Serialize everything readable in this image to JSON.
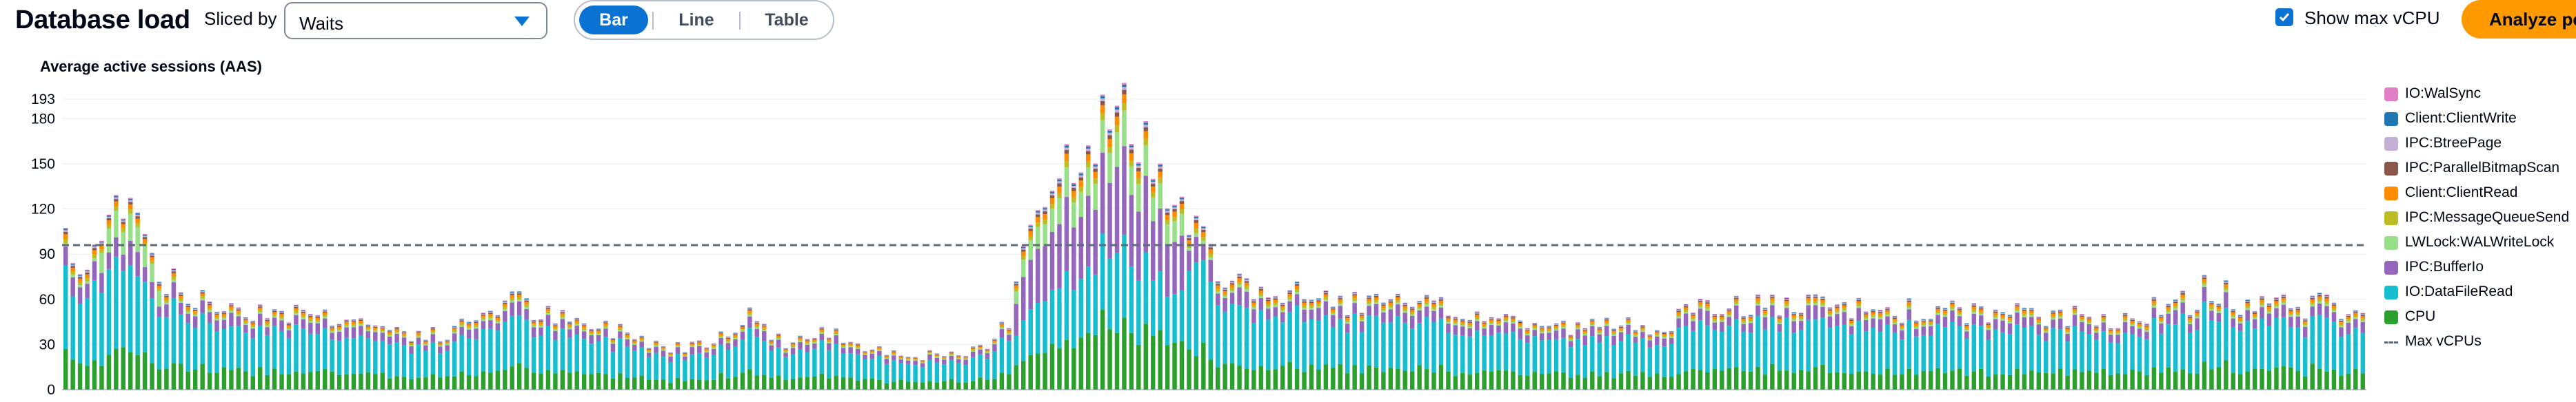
{
  "header": {
    "title": "Database load",
    "sliced_by_label": "Sliced by",
    "sliced_by_value": "Waits",
    "view_modes": [
      "Bar",
      "Line",
      "Table"
    ],
    "active_view": "Bar",
    "show_max_vcpu_label": "Show max vCPU",
    "show_max_vcpu_checked": true,
    "analyze_button_label": "Analyze pe"
  },
  "chart": {
    "title": "Average active sessions (AAS)"
  },
  "legend": [
    {
      "name": "IO:WalSync",
      "color": "#e07fc4"
    },
    {
      "name": "Client:ClientWrite",
      "color": "#1f77b4"
    },
    {
      "name": "IPC:BtreePage",
      "color": "#c5b0d5"
    },
    {
      "name": "IPC:ParallelBitmapScan",
      "color": "#8c564b"
    },
    {
      "name": "Client:ClientRead",
      "color": "#ff8c00"
    },
    {
      "name": "IPC:MessageQueueSend",
      "color": "#bcbd22"
    },
    {
      "name": "LWLock:WALWriteLock",
      "color": "#98df8a"
    },
    {
      "name": "IPC:BufferIo",
      "color": "#9467bd"
    },
    {
      "name": "IO:DataFileRead",
      "color": "#17becf"
    },
    {
      "name": "CPU",
      "color": "#2ca02c"
    },
    {
      "name": "Max vCPUs",
      "color": "#5f6b7a",
      "style": "dashed"
    }
  ],
  "chart_data": {
    "type": "bar",
    "stacked": true,
    "title": "Average active sessions (AAS)",
    "yticks": [
      0,
      30,
      60,
      90,
      120,
      150,
      180,
      193
    ],
    "ylim": [
      0,
      193
    ],
    "max_vcpu": 96,
    "series_order": [
      "CPU",
      "IO:DataFileRead",
      "IPC:BufferIo",
      "LWLock:WALWriteLock",
      "IPC:MessageQueueSend",
      "Client:ClientRead",
      "IPC:ParallelBitmapScan",
      "IPC:BtreePage",
      "Client:ClientWrite",
      "IO:WalSync"
    ],
    "colors": {
      "CPU": "#2ca02c",
      "IO:DataFileRead": "#17becf",
      "IPC:BufferIo": "#9467bd",
      "LWLock:WALWriteLock": "#98df8a",
      "IPC:MessageQueueSend": "#bcbd22",
      "Client:ClientRead": "#ff8c00",
      "IPC:ParallelBitmapScan": "#8c564b",
      "IPC:BtreePage": "#c5b0d5",
      "Client:ClientWrite": "#1f77b4",
      "IO:WalSync": "#e07fc4"
    },
    "bar_count": 320,
    "totals_profile": [
      [
        0,
        110
      ],
      [
        3,
        80
      ],
      [
        6,
        72
      ],
      [
        10,
        100
      ],
      [
        14,
        140
      ],
      [
        18,
        130
      ],
      [
        24,
        125
      ],
      [
        27,
        90
      ],
      [
        32,
        75
      ],
      [
        40,
        60
      ],
      [
        60,
        55
      ],
      [
        85,
        50
      ],
      [
        100,
        42
      ],
      [
        110,
        38
      ],
      [
        120,
        36
      ],
      [
        130,
        52
      ],
      [
        140,
        62
      ],
      [
        148,
        52
      ],
      [
        160,
        44
      ],
      [
        175,
        40
      ],
      [
        190,
        28
      ],
      [
        200,
        33
      ],
      [
        215,
        50
      ],
      [
        225,
        32
      ],
      [
        240,
        38
      ],
      [
        260,
        25
      ],
      [
        280,
        22
      ],
      [
        290,
        30
      ],
      [
        296,
        50
      ],
      [
        300,
        100
      ],
      [
        305,
        135
      ],
      [
        315,
        160
      ],
      [
        320,
        175
      ],
      [
        330,
        185
      ],
      [
        338,
        178
      ],
      [
        345,
        130
      ],
      [
        355,
        100
      ],
      [
        365,
        75
      ],
      [
        380,
        65
      ],
      [
        400,
        60
      ],
      [
        430,
        55
      ],
      [
        470,
        42
      ],
      [
        500,
        45
      ],
      [
        520,
        58
      ],
      [
        560,
        55
      ],
      [
        600,
        52
      ],
      [
        640,
        48
      ],
      [
        668,
        60
      ],
      [
        672,
        72
      ],
      [
        680,
        60
      ],
      [
        720,
        55
      ]
    ],
    "x_domain": [
      0,
      720
    ]
  }
}
